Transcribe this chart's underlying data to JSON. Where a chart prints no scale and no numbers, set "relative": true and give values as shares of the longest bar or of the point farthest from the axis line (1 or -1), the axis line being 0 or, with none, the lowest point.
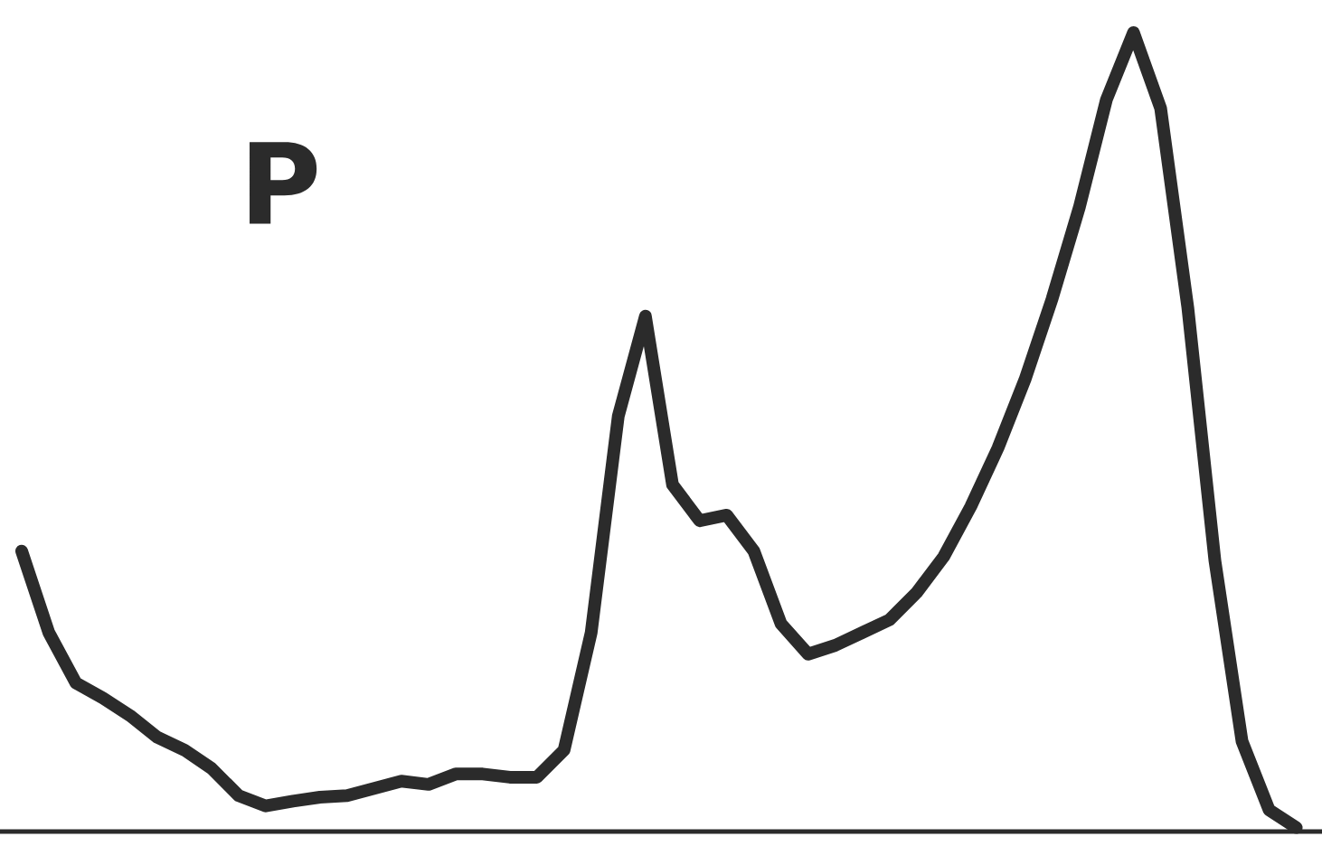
{
  "chart_data": {
    "type": "line",
    "title": "P",
    "relative": true,
    "color": "#2b2b2b",
    "categories": [
      null,
      null,
      null,
      null,
      null,
      null,
      null,
      null,
      null,
      null,
      null,
      null,
      null,
      null,
      null,
      null,
      null,
      null,
      null,
      null,
      null,
      null,
      null,
      null,
      null,
      null,
      null,
      null,
      null,
      null,
      null,
      null,
      null,
      null,
      null,
      null,
      null,
      null,
      null,
      null,
      null,
      null,
      null,
      null,
      null,
      null,
      null,
      null
    ],
    "values": [
      0.351,
      0.249,
      0.186,
      0.167,
      0.145,
      0.118,
      0.102,
      0.079,
      0.045,
      0.032,
      0.038,
      0.043,
      0.045,
      0.054,
      0.063,
      0.059,
      0.072,
      0.072,
      0.068,
      0.068,
      0.102,
      0.249,
      0.52,
      0.645,
      0.434,
      0.389,
      0.396,
      0.351,
      0.26,
      0.222,
      0.233,
      0.249,
      0.265,
      0.299,
      0.344,
      0.407,
      0.48,
      0.566,
      0.667,
      0.781,
      0.916,
      1,
      0.905,
      0.656,
      0.339,
      0.113,
      0.027,
      0.005
    ]
  }
}
